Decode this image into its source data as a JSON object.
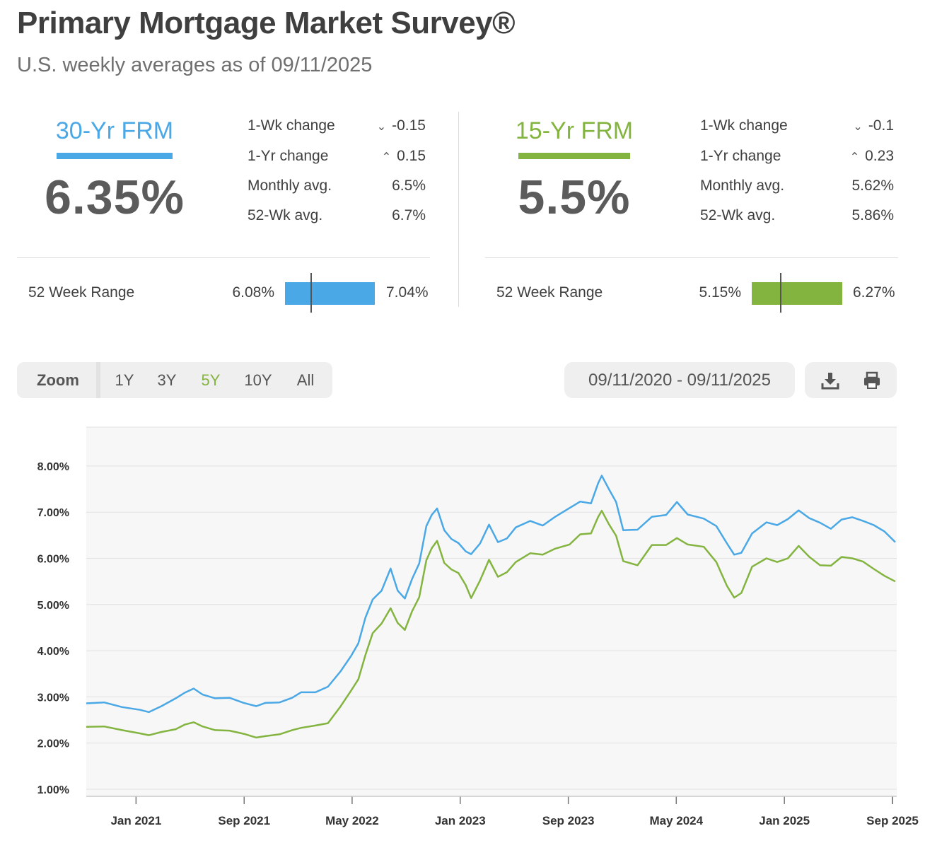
{
  "header": {
    "title": "Primary Mortgage Market Survey®",
    "subtitle": "U.S. weekly averages as of 09/11/2025"
  },
  "colors": {
    "blue": "#4aa8e6",
    "green": "#84b440",
    "accent_active": "#84b440"
  },
  "rates": [
    {
      "label": "30-Yr FRM",
      "value": "6.35%",
      "stats": [
        {
          "label": "1-Wk change",
          "arrow": "down",
          "value": "-0.15"
        },
        {
          "label": "1-Yr change",
          "arrow": "up",
          "value": "0.15"
        },
        {
          "label": "Monthly avg.",
          "arrow": "",
          "value": "6.5%"
        },
        {
          "label": "52-Wk avg.",
          "arrow": "",
          "value": "6.7%"
        }
      ],
      "range_label": "52 Week Range",
      "range_min": "6.08%",
      "range_max": "7.04%",
      "range_current": 6.35
    },
    {
      "label": "15-Yr FRM",
      "value": "5.5%",
      "stats": [
        {
          "label": "1-Wk change",
          "arrow": "down",
          "value": "-0.1"
        },
        {
          "label": "1-Yr change",
          "arrow": "up",
          "value": "0.23"
        },
        {
          "label": "Monthly avg.",
          "arrow": "",
          "value": "5.62%"
        },
        {
          "label": "52-Wk avg.",
          "arrow": "",
          "value": "5.86%"
        }
      ],
      "range_label": "52 Week Range",
      "range_min": "5.15%",
      "range_max": "6.27%",
      "range_current": 5.5
    }
  ],
  "zoom": {
    "label": "Zoom",
    "options": [
      "1Y",
      "3Y",
      "5Y",
      "10Y",
      "All"
    ],
    "active": "5Y"
  },
  "date_range": "09/11/2020 - 09/11/2025",
  "tools": {
    "download_icon": "download-icon",
    "print_icon": "print-icon"
  },
  "chart_data": {
    "type": "line",
    "title": "",
    "xlabel": "",
    "ylabel": "",
    "ylim": [
      0.8,
      8.8
    ],
    "x_range": [
      "2020-09-11",
      "2025-09-11"
    ],
    "yticks": [
      "1.00%",
      "2.00%",
      "3.00%",
      "4.00%",
      "5.00%",
      "6.00%",
      "7.00%",
      "8.00%"
    ],
    "ytick_values": [
      1,
      2,
      3,
      4,
      5,
      6,
      7,
      8
    ],
    "xticks": [
      "Jan 2021",
      "Sep 2021",
      "May 2022",
      "Jan 2023",
      "Sep 2023",
      "May 2024",
      "Jan 2025",
      "Sep 2025"
    ],
    "xtick_positions": [
      0.307,
      0.974,
      1.64,
      2.307,
      2.974,
      3.64,
      4.307,
      4.974
    ],
    "series": [
      {
        "name": "30-Yr FRM",
        "color": "#4aa8e6",
        "points": [
          [
            0.0,
            2.86
          ],
          [
            0.1,
            2.88
          ],
          [
            0.2,
            2.78
          ],
          [
            0.3,
            2.72
          ],
          [
            0.35,
            2.67
          ],
          [
            0.42,
            2.8
          ],
          [
            0.5,
            2.97
          ],
          [
            0.55,
            3.09
          ],
          [
            0.6,
            3.18
          ],
          [
            0.65,
            3.05
          ],
          [
            0.72,
            2.97
          ],
          [
            0.8,
            2.98
          ],
          [
            0.88,
            2.87
          ],
          [
            0.95,
            2.8
          ],
          [
            1.0,
            2.87
          ],
          [
            1.08,
            2.88
          ],
          [
            1.15,
            2.98
          ],
          [
            1.2,
            3.1
          ],
          [
            1.28,
            3.1
          ],
          [
            1.35,
            3.22
          ],
          [
            1.42,
            3.55
          ],
          [
            1.48,
            3.89
          ],
          [
            1.52,
            4.16
          ],
          [
            1.56,
            4.72
          ],
          [
            1.6,
            5.11
          ],
          [
            1.65,
            5.3
          ],
          [
            1.7,
            5.78
          ],
          [
            1.74,
            5.3
          ],
          [
            1.78,
            5.13
          ],
          [
            1.82,
            5.55
          ],
          [
            1.86,
            5.89
          ],
          [
            1.9,
            6.7
          ],
          [
            1.93,
            6.94
          ],
          [
            1.96,
            7.08
          ],
          [
            2.0,
            6.61
          ],
          [
            2.04,
            6.42
          ],
          [
            2.08,
            6.33
          ],
          [
            2.12,
            6.15
          ],
          [
            2.15,
            6.09
          ],
          [
            2.2,
            6.32
          ],
          [
            2.25,
            6.73
          ],
          [
            2.3,
            6.35
          ],
          [
            2.35,
            6.43
          ],
          [
            2.4,
            6.67
          ],
          [
            2.48,
            6.81
          ],
          [
            2.55,
            6.71
          ],
          [
            2.62,
            6.9
          ],
          [
            2.7,
            7.09
          ],
          [
            2.76,
            7.23
          ],
          [
            2.82,
            7.19
          ],
          [
            2.86,
            7.63
          ],
          [
            2.88,
            7.79
          ],
          [
            2.92,
            7.5
          ],
          [
            2.96,
            7.22
          ],
          [
            3.0,
            6.61
          ],
          [
            3.08,
            6.62
          ],
          [
            3.16,
            6.9
          ],
          [
            3.24,
            6.94
          ],
          [
            3.3,
            7.22
          ],
          [
            3.36,
            6.95
          ],
          [
            3.45,
            6.86
          ],
          [
            3.52,
            6.7
          ],
          [
            3.58,
            6.32
          ],
          [
            3.62,
            6.08
          ],
          [
            3.66,
            6.12
          ],
          [
            3.72,
            6.54
          ],
          [
            3.8,
            6.78
          ],
          [
            3.86,
            6.72
          ],
          [
            3.92,
            6.85
          ],
          [
            3.98,
            7.04
          ],
          [
            4.04,
            6.87
          ],
          [
            4.1,
            6.77
          ],
          [
            4.16,
            6.64
          ],
          [
            4.22,
            6.84
          ],
          [
            4.28,
            6.89
          ],
          [
            4.34,
            6.81
          ],
          [
            4.4,
            6.72
          ],
          [
            4.46,
            6.58
          ],
          [
            4.52,
            6.35
          ]
        ]
      },
      {
        "name": "15-Yr FRM",
        "color": "#84b440",
        "points": [
          [
            0.0,
            2.35
          ],
          [
            0.1,
            2.36
          ],
          [
            0.2,
            2.28
          ],
          [
            0.3,
            2.21
          ],
          [
            0.35,
            2.17
          ],
          [
            0.42,
            2.24
          ],
          [
            0.5,
            2.3
          ],
          [
            0.55,
            2.4
          ],
          [
            0.6,
            2.45
          ],
          [
            0.65,
            2.36
          ],
          [
            0.72,
            2.28
          ],
          [
            0.8,
            2.27
          ],
          [
            0.88,
            2.2
          ],
          [
            0.95,
            2.12
          ],
          [
            1.0,
            2.15
          ],
          [
            1.08,
            2.19
          ],
          [
            1.15,
            2.28
          ],
          [
            1.2,
            2.33
          ],
          [
            1.28,
            2.38
          ],
          [
            1.35,
            2.43
          ],
          [
            1.42,
            2.79
          ],
          [
            1.48,
            3.14
          ],
          [
            1.52,
            3.38
          ],
          [
            1.56,
            3.91
          ],
          [
            1.6,
            4.38
          ],
          [
            1.65,
            4.59
          ],
          [
            1.7,
            4.92
          ],
          [
            1.74,
            4.6
          ],
          [
            1.78,
            4.45
          ],
          [
            1.82,
            4.85
          ],
          [
            1.86,
            5.16
          ],
          [
            1.9,
            5.96
          ],
          [
            1.93,
            6.22
          ],
          [
            1.96,
            6.38
          ],
          [
            2.0,
            5.9
          ],
          [
            2.04,
            5.76
          ],
          [
            2.08,
            5.68
          ],
          [
            2.12,
            5.42
          ],
          [
            2.15,
            5.14
          ],
          [
            2.2,
            5.52
          ],
          [
            2.25,
            5.97
          ],
          [
            2.3,
            5.6
          ],
          [
            2.35,
            5.7
          ],
          [
            2.4,
            5.92
          ],
          [
            2.48,
            6.11
          ],
          [
            2.55,
            6.08
          ],
          [
            2.62,
            6.21
          ],
          [
            2.7,
            6.3
          ],
          [
            2.76,
            6.52
          ],
          [
            2.82,
            6.54
          ],
          [
            2.86,
            6.9
          ],
          [
            2.88,
            7.03
          ],
          [
            2.92,
            6.74
          ],
          [
            2.96,
            6.49
          ],
          [
            3.0,
            5.94
          ],
          [
            3.08,
            5.85
          ],
          [
            3.16,
            6.29
          ],
          [
            3.24,
            6.29
          ],
          [
            3.3,
            6.44
          ],
          [
            3.36,
            6.3
          ],
          [
            3.45,
            6.25
          ],
          [
            3.52,
            5.92
          ],
          [
            3.58,
            5.4
          ],
          [
            3.62,
            5.15
          ],
          [
            3.66,
            5.25
          ],
          [
            3.72,
            5.82
          ],
          [
            3.8,
            6.0
          ],
          [
            3.86,
            5.92
          ],
          [
            3.92,
            6.0
          ],
          [
            3.98,
            6.27
          ],
          [
            4.04,
            6.03
          ],
          [
            4.1,
            5.85
          ],
          [
            4.16,
            5.84
          ],
          [
            4.22,
            6.03
          ],
          [
            4.28,
            6.0
          ],
          [
            4.34,
            5.93
          ],
          [
            4.4,
            5.77
          ],
          [
            4.46,
            5.62
          ],
          [
            4.52,
            5.5
          ]
        ]
      }
    ]
  }
}
